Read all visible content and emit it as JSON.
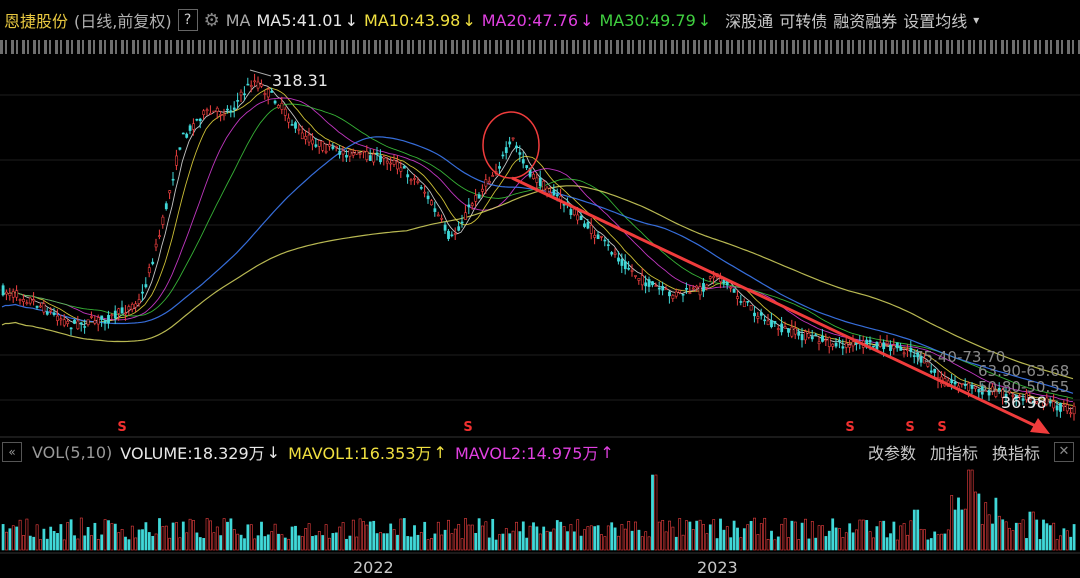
{
  "header": {
    "stock_name": "恩捷股份",
    "mode": "(日线,前复权)",
    "help": "?",
    "ma_label": "MA",
    "ma5": "MA5:41.01",
    "ma10": "MA10:43.98",
    "ma20": "MA20:47.76",
    "ma30": "MA30:49.79",
    "arrow": "↓",
    "menu": [
      "深股通",
      "可转债",
      "融资融券",
      "设置均线"
    ],
    "menu_caret": "▾",
    "colors": {
      "ma5": "#e8e8e8",
      "ma10": "#f0e040",
      "ma20": "#e040e0",
      "ma30": "#40d040"
    }
  },
  "volume_bar": {
    "nav": "«",
    "label": "VOL(5,10)",
    "volume": "VOLUME:18.329万",
    "vol_arrow": "↓",
    "mavol1": "MAVOL1:16.353万",
    "mavol1_arrow": "↑",
    "mavol2": "MAVOL2:14.975万",
    "mavol2_arrow": "↑",
    "buttons": [
      "改参数",
      "加指标",
      "换指标"
    ],
    "close": "✕"
  },
  "chart_data": {
    "type": "candlestick",
    "annotations": {
      "high": "318.31",
      "low": "36.98",
      "range1": "75.40-73.70",
      "range2": "63.90-63.68",
      "range3": "50.80-50.55"
    },
    "marker_glyph": "S",
    "x_ticks": [
      "2022",
      "2023"
    ],
    "trendline_color": "#f03c3c"
  }
}
